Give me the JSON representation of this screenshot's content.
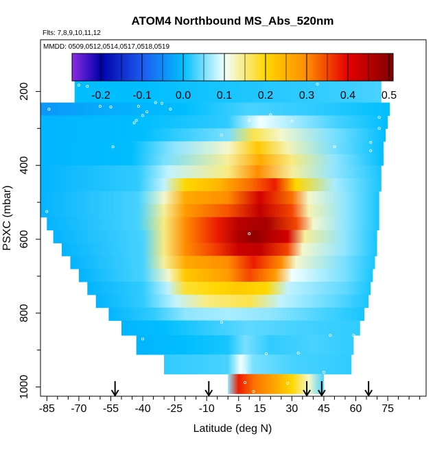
{
  "chart_data": {
    "type": "heatmap",
    "title": "ATOM4 Northbound MS_Abs_520nm",
    "subtitle": "Flts: 7,8,9,10,11,12",
    "annotation": "MMDD: 0509,0512,0514,0517,0518,0519",
    "xlabel": "Latitude (deg N)",
    "ylabel": "PSXC (mbar)",
    "xlim": [
      -88,
      93
    ],
    "ylim": [
      1025,
      60
    ],
    "x_tick_labels": [
      "-85",
      "-70",
      "-55",
      "-40",
      "-25",
      "-10",
      "5",
      "15",
      "30",
      "45",
      "60",
      "75"
    ],
    "x_tick_values": [
      -85,
      -70,
      -55,
      -40,
      -25,
      -10,
      5,
      15,
      30,
      45,
      60,
      75
    ],
    "y_tick_labels": [
      "200",
      "400",
      "600",
      "800",
      "1000"
    ],
    "y_tick_values": [
      200,
      400,
      600,
      800,
      1000
    ],
    "colorbar": {
      "range": [
        -0.27,
        0.51
      ],
      "tick_labels": [
        "-0.2",
        "-0.1",
        "0.0",
        "0.1",
        "0.2",
        "0.3",
        "0.4",
        "0.5"
      ],
      "tick_values": [
        -0.2,
        -0.1,
        0.0,
        0.1,
        0.2,
        0.3,
        0.4,
        0.5
      ]
    },
    "flight_markers_lat": [
      -53,
      -9,
      37,
      44,
      66
    ],
    "layers": [
      {
        "p_top": 160,
        "p_bot": 230,
        "lat_min": -72,
        "lat_max": 72,
        "points": [
          [
            -72,
            0.0
          ],
          [
            -40,
            0.0
          ],
          [
            0,
            0.01
          ],
          [
            40,
            0.02
          ],
          [
            72,
            0.03
          ]
        ]
      },
      {
        "p_top": 230,
        "p_bot": 265,
        "lat_min": -88,
        "lat_max": 76,
        "points": [
          [
            -88,
            -0.04
          ],
          [
            -60,
            -0.02
          ],
          [
            -20,
            0.0
          ],
          [
            10,
            0.03
          ],
          [
            40,
            0.02
          ],
          [
            76,
            0.0
          ]
        ]
      },
      {
        "p_top": 265,
        "p_bot": 300,
        "lat_min": -88,
        "lat_max": 75,
        "points": [
          [
            -88,
            -0.01
          ],
          [
            -40,
            0.0
          ],
          [
            0,
            0.02
          ],
          [
            15,
            0.1
          ],
          [
            30,
            0.07
          ],
          [
            50,
            0.03
          ],
          [
            75,
            0.0
          ]
        ]
      },
      {
        "p_top": 300,
        "p_bot": 335,
        "lat_min": -88,
        "lat_max": 74,
        "points": [
          [
            -88,
            -0.01
          ],
          [
            -40,
            0.0
          ],
          [
            0,
            0.05
          ],
          [
            12,
            0.17
          ],
          [
            25,
            0.12
          ],
          [
            50,
            0.05
          ],
          [
            74,
            0.0
          ]
        ]
      },
      {
        "p_top": 335,
        "p_bot": 370,
        "lat_min": -88,
        "lat_max": 73,
        "points": [
          [
            -88,
            -0.01
          ],
          [
            -45,
            0.0
          ],
          [
            -25,
            0.06
          ],
          [
            0,
            0.12
          ],
          [
            14,
            0.22
          ],
          [
            28,
            0.13
          ],
          [
            50,
            0.05
          ],
          [
            73,
            0.0
          ]
        ]
      },
      {
        "p_top": 370,
        "p_bot": 400,
        "lat_min": -88,
        "lat_max": 73,
        "points": [
          [
            -88,
            -0.01
          ],
          [
            -45,
            0.0
          ],
          [
            -30,
            0.05
          ],
          [
            0,
            0.14
          ],
          [
            15,
            0.26
          ],
          [
            30,
            0.15
          ],
          [
            50,
            0.06
          ],
          [
            73,
            0.0
          ]
        ]
      },
      {
        "p_top": 400,
        "p_bot": 435,
        "lat_min": -88,
        "lat_max": 72,
        "points": [
          [
            -88,
            -0.01
          ],
          [
            -42,
            0.02
          ],
          [
            -28,
            0.08
          ],
          [
            0,
            0.15
          ],
          [
            14,
            0.3
          ],
          [
            30,
            0.14
          ],
          [
            50,
            0.06
          ],
          [
            72,
            0.01
          ]
        ]
      },
      {
        "p_top": 435,
        "p_bot": 470,
        "lat_min": -88,
        "lat_max": 72,
        "points": [
          [
            -88,
            -0.01
          ],
          [
            -42,
            0.02
          ],
          [
            -30,
            0.08
          ],
          [
            -20,
            0.2
          ],
          [
            -5,
            0.24
          ],
          [
            10,
            0.32
          ],
          [
            22,
            0.38
          ],
          [
            32,
            0.2
          ],
          [
            50,
            0.07
          ],
          [
            72,
            0.01
          ]
        ]
      },
      {
        "p_top": 470,
        "p_bot": 505,
        "lat_min": -88,
        "lat_max": 71,
        "points": [
          [
            -88,
            -0.01
          ],
          [
            -42,
            0.03
          ],
          [
            -30,
            0.12
          ],
          [
            -20,
            0.26
          ],
          [
            0,
            0.3
          ],
          [
            15,
            0.42
          ],
          [
            30,
            0.32
          ],
          [
            38,
            0.12
          ],
          [
            55,
            0.06
          ],
          [
            71,
            0.01
          ]
        ]
      },
      {
        "p_top": 505,
        "p_bot": 540,
        "lat_min": -88,
        "lat_max": 71,
        "points": [
          [
            -88,
            -0.01
          ],
          [
            -42,
            0.03
          ],
          [
            -30,
            0.14
          ],
          [
            -20,
            0.28
          ],
          [
            0,
            0.34
          ],
          [
            15,
            0.44
          ],
          [
            30,
            0.35
          ],
          [
            38,
            0.13
          ],
          [
            55,
            0.06
          ],
          [
            71,
            0.01
          ]
        ]
      },
      {
        "p_top": 540,
        "p_bot": 575,
        "lat_min": -85,
        "lat_max": 71,
        "points": [
          [
            -85,
            -0.01
          ],
          [
            -42,
            0.03
          ],
          [
            -30,
            0.15
          ],
          [
            -20,
            0.3
          ],
          [
            -5,
            0.38
          ],
          [
            5,
            0.45
          ],
          [
            18,
            0.47
          ],
          [
            32,
            0.35
          ],
          [
            40,
            0.12
          ],
          [
            55,
            0.06
          ],
          [
            71,
            0.01
          ]
        ]
      },
      {
        "p_top": 575,
        "p_bot": 610,
        "lat_min": -82,
        "lat_max": 70,
        "points": [
          [
            -82,
            -0.01
          ],
          [
            -40,
            0.03
          ],
          [
            -30,
            0.15
          ],
          [
            -20,
            0.3
          ],
          [
            -5,
            0.38
          ],
          [
            5,
            0.46
          ],
          [
            12,
            0.49
          ],
          [
            28,
            0.42
          ],
          [
            36,
            0.14
          ],
          [
            55,
            0.06
          ],
          [
            70,
            0.01
          ]
        ]
      },
      {
        "p_top": 610,
        "p_bot": 645,
        "lat_min": -78,
        "lat_max": 70,
        "points": [
          [
            -78,
            -0.01
          ],
          [
            -40,
            0.03
          ],
          [
            -30,
            0.15
          ],
          [
            -20,
            0.3
          ],
          [
            -5,
            0.36
          ],
          [
            5,
            0.43
          ],
          [
            15,
            0.44
          ],
          [
            28,
            0.35
          ],
          [
            35,
            0.12
          ],
          [
            55,
            0.06
          ],
          [
            70,
            0.01
          ]
        ]
      },
      {
        "p_top": 645,
        "p_bot": 680,
        "lat_min": -74,
        "lat_max": 69,
        "points": [
          [
            -74,
            -0.01
          ],
          [
            -40,
            0.03
          ],
          [
            -30,
            0.14
          ],
          [
            -20,
            0.26
          ],
          [
            0,
            0.3
          ],
          [
            12,
            0.38
          ],
          [
            25,
            0.3
          ],
          [
            32,
            0.12
          ],
          [
            55,
            0.05
          ],
          [
            69,
            0.01
          ]
        ]
      },
      {
        "p_top": 680,
        "p_bot": 715,
        "lat_min": -70,
        "lat_max": 68,
        "points": [
          [
            -70,
            -0.01
          ],
          [
            -40,
            0.03
          ],
          [
            -28,
            0.12
          ],
          [
            -20,
            0.22
          ],
          [
            0,
            0.28
          ],
          [
            10,
            0.35
          ],
          [
            22,
            0.28
          ],
          [
            30,
            0.1
          ],
          [
            55,
            0.05
          ],
          [
            68,
            0.01
          ]
        ]
      },
      {
        "p_top": 715,
        "p_bot": 750,
        "lat_min": -66,
        "lat_max": 67,
        "points": [
          [
            -66,
            -0.01
          ],
          [
            -40,
            0.02
          ],
          [
            -28,
            0.08
          ],
          [
            -20,
            0.18
          ],
          [
            -5,
            0.2
          ],
          [
            5,
            0.22
          ],
          [
            18,
            0.2
          ],
          [
            28,
            0.08
          ],
          [
            55,
            0.04
          ],
          [
            67,
            0.01
          ]
        ]
      },
      {
        "p_top": 750,
        "p_bot": 785,
        "lat_min": -62,
        "lat_max": 66,
        "points": [
          [
            -62,
            -0.01
          ],
          [
            -40,
            0.02
          ],
          [
            -25,
            0.08
          ],
          [
            -10,
            0.15
          ],
          [
            10,
            0.17
          ],
          [
            25,
            0.08
          ],
          [
            50,
            0.04
          ],
          [
            66,
            0.01
          ]
        ]
      },
      {
        "p_top": 785,
        "p_bot": 820,
        "lat_min": -56,
        "lat_max": 64,
        "points": [
          [
            -56,
            -0.01
          ],
          [
            -35,
            0.02
          ],
          [
            -20,
            0.06
          ],
          [
            0,
            0.07
          ],
          [
            20,
            0.06
          ],
          [
            45,
            0.03
          ],
          [
            64,
            0.01
          ]
        ]
      },
      {
        "p_top": 820,
        "p_bot": 860,
        "lat_min": -50,
        "lat_max": 62,
        "points": [
          [
            -50,
            -0.01
          ],
          [
            -30,
            0.0
          ],
          [
            -10,
            0.02
          ],
          [
            10,
            0.04
          ],
          [
            30,
            0.03
          ],
          [
            62,
            0.02
          ]
        ]
      },
      {
        "p_top": 860,
        "p_bot": 912,
        "lat_min": -43,
        "lat_max": 59,
        "points": [
          [
            -43,
            -0.01
          ],
          [
            -20,
            0.0
          ],
          [
            0,
            0.01
          ],
          [
            8,
            0.05
          ],
          [
            20,
            0.02
          ],
          [
            40,
            0.03
          ],
          [
            59,
            0.02
          ]
        ]
      },
      {
        "p_top": 912,
        "p_bot": 965,
        "lat_min": -30,
        "lat_max": 58,
        "points": [
          [
            -30,
            0.02
          ],
          [
            0,
            0.03
          ],
          [
            6,
            0.1
          ],
          [
            12,
            0.05
          ],
          [
            30,
            0.03
          ],
          [
            58,
            0.02
          ]
        ]
      },
      {
        "p_top": 965,
        "p_bot": 1018,
        "lat_min": 0,
        "lat_max": 45,
        "points": [
          [
            0,
            0.06
          ],
          [
            5,
            0.38
          ],
          [
            12,
            0.32
          ],
          [
            20,
            0.28
          ],
          [
            30,
            0.2
          ],
          [
            38,
            0.12
          ],
          [
            45,
            0.03
          ]
        ]
      }
    ],
    "sample_points": [
      [
        -70,
        183
      ],
      [
        -66,
        186
      ],
      [
        -88,
        226
      ],
      [
        -84,
        248
      ],
      [
        -60,
        240
      ],
      [
        -55,
        242
      ],
      [
        -42,
        240
      ],
      [
        -40,
        265
      ],
      [
        -31,
        232
      ],
      [
        -38,
        255
      ],
      [
        -34,
        230
      ],
      [
        -27,
        248
      ],
      [
        -43,
        278
      ],
      [
        -44,
        285
      ],
      [
        -54,
        350
      ],
      [
        -3,
        318
      ],
      [
        10,
        278
      ],
      [
        20,
        263
      ],
      [
        30,
        280
      ],
      [
        -85,
        525
      ],
      [
        -3,
        825
      ],
      [
        -40,
        870
      ],
      [
        10,
        585
      ],
      [
        18,
        910
      ],
      [
        33,
        908
      ],
      [
        48,
        860
      ],
      [
        59,
        860
      ],
      [
        71,
        270
      ],
      [
        71,
        300
      ],
      [
        67,
        338
      ],
      [
        67,
        360
      ],
      [
        50,
        350
      ],
      [
        42,
        180
      ],
      [
        8,
        960
      ],
      [
        8,
        988
      ],
      [
        28,
        990
      ],
      [
        36,
        1012
      ],
      [
        12,
        1012
      ],
      [
        45,
        960
      ]
    ]
  }
}
